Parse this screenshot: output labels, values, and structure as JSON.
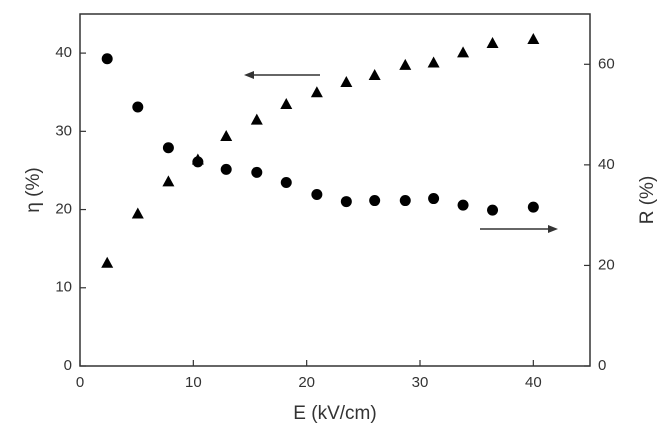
{
  "chart_data": {
    "type": "scatter",
    "x_label": "E (kV/cm)",
    "y_label": "η (%)",
    "y2_label": "R (%)",
    "x": [
      2.4,
      5.1,
      7.8,
      10.4,
      12.9,
      15.6,
      18.2,
      20.9,
      23.5,
      26.0,
      28.7,
      31.2,
      33.8,
      36.4,
      40.0
    ],
    "series": [
      {
        "marker": "triangle",
        "color": "#000000",
        "axis": "y",
        "values": [
          13.2,
          19.5,
          23.6,
          26.4,
          29.4,
          31.5,
          33.5,
          35.0,
          36.3,
          37.2,
          38.5,
          38.8,
          40.1,
          41.3,
          41.8
        ]
      },
      {
        "marker": "circle",
        "color": "#000000",
        "axis": "y2",
        "values": [
          61.1,
          51.5,
          43.4,
          40.6,
          39.1,
          38.5,
          36.5,
          34.1,
          32.7,
          32.9,
          32.9,
          33.3,
          32.0,
          31.0,
          31.6
        ]
      }
    ],
    "xlim": [
      0,
      45
    ],
    "xticks": [
      0,
      10,
      20,
      30,
      40
    ],
    "ylim": [
      0,
      45
    ],
    "yticks": [
      0,
      10,
      20,
      30,
      40
    ],
    "y2lim": [
      0,
      70
    ],
    "y2ticks": [
      0,
      20,
      40,
      60
    ],
    "grid": false
  }
}
